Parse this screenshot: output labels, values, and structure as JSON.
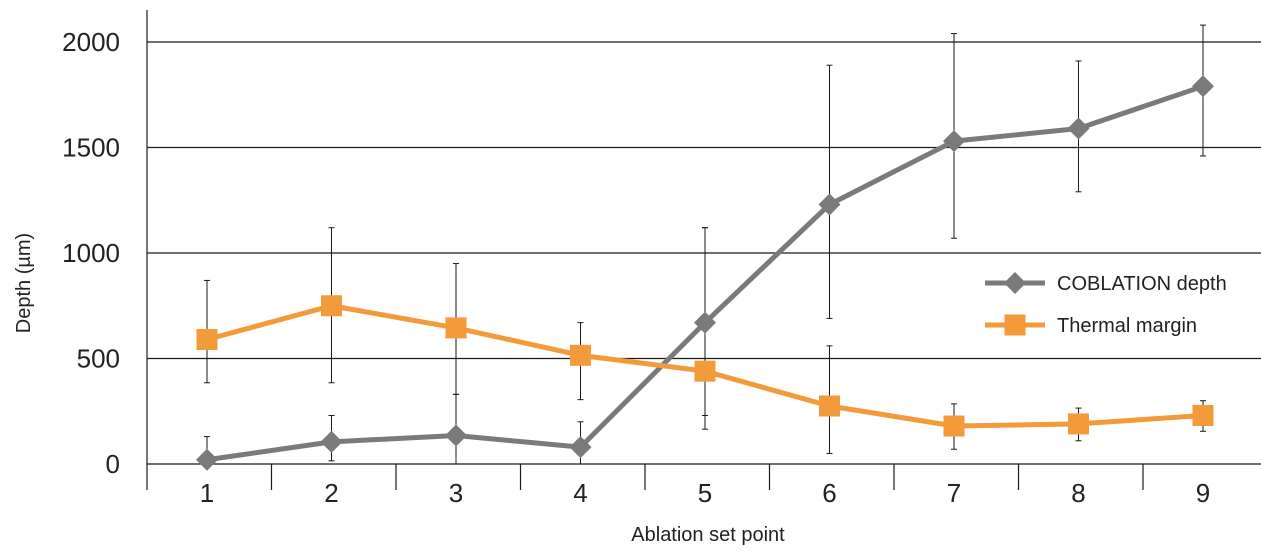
{
  "chart_data": {
    "type": "line",
    "title": "",
    "xlabel": "Ablation set point",
    "ylabel": "Depth (µm)",
    "categories": [
      "1",
      "2",
      "3",
      "4",
      "5",
      "6",
      "7",
      "8",
      "9"
    ],
    "ylim": [
      0,
      2000
    ],
    "yticks": [
      0,
      500,
      1000,
      1500,
      2000
    ],
    "grid": "horizontal",
    "legend_position": "right",
    "series": [
      {
        "name": "COBLATION depth",
        "color": "#7a7a7c",
        "marker": "diamond",
        "values": [
          20,
          105,
          135,
          80,
          670,
          1230,
          1530,
          1590,
          1790
        ],
        "error_low": [
          0,
          15,
          0,
          0,
          230,
          690,
          1070,
          1290,
          1460
        ],
        "error_high": [
          130,
          230,
          330,
          200,
          1120,
          1890,
          2040,
          1910,
          2080
        ]
      },
      {
        "name": "Thermal margin",
        "color": "#f39a3a",
        "marker": "square",
        "values": [
          590,
          750,
          645,
          515,
          440,
          275,
          180,
          190,
          230
        ],
        "error_low": [
          385,
          385,
          330,
          305,
          165,
          50,
          70,
          110,
          155
        ],
        "error_high": [
          870,
          1120,
          950,
          670,
          1120,
          560,
          285,
          265,
          300
        ]
      }
    ]
  }
}
